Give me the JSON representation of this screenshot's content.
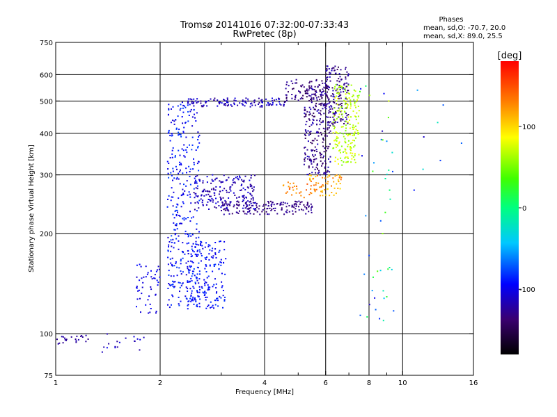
{
  "chart_data": {
    "type": "scatter",
    "title": "Tromsø 20141016 07:32:00-07:33:43",
    "subtitle": "RwPretec (8p)",
    "xlabel": "Frequency [MHz]",
    "ylabel": "Stationary phase Virtual Height [km]",
    "x_scale": "log",
    "y_scale": "log",
    "xlim": [
      1,
      16
    ],
    "ylim": [
      75,
      750
    ],
    "x_ticks": [
      1,
      2,
      4,
      6,
      8,
      10,
      16
    ],
    "x_minor_ticks": [
      3,
      5,
      7,
      9
    ],
    "y_ticks": [
      75,
      100,
      200,
      300,
      400,
      500,
      600,
      750
    ],
    "x_gridlines": [
      2,
      4,
      6,
      8,
      10
    ],
    "y_gridlines": [
      100,
      200,
      300,
      400,
      500,
      600
    ],
    "grid": true,
    "stats": {
      "heading": "Phases",
      "line1": "mean, sd,O: -70.7, 20.0",
      "line2": "mean, sd,X:  89.0, 25.5"
    },
    "colorbar": {
      "label": "[deg]",
      "range": [
        -180,
        180
      ],
      "ticks": [
        100,
        0,
        -100
      ]
    },
    "clusters": [
      {
        "f": [
          0.95,
          1.25
        ],
        "h": [
          93,
          99
        ],
        "phase": [
          -130,
          -115
        ],
        "count": 30
      },
      {
        "f": [
          1.35,
          1.8
        ],
        "h": [
          87,
          100
        ],
        "phase": [
          -125,
          -95
        ],
        "count": 18
      },
      {
        "f": [
          2.1,
          2.6
        ],
        "h": [
          120,
          500
        ],
        "phase": [
          -110,
          -75
        ],
        "count": 360
      },
      {
        "f": [
          2.4,
          3.1
        ],
        "h": [
          118,
          190
        ],
        "phase": [
          -105,
          -80
        ],
        "count": 170
      },
      {
        "f": [
          1.7,
          2.0
        ],
        "h": [
          115,
          165
        ],
        "phase": [
          -110,
          -90
        ],
        "count": 50
      },
      {
        "f": [
          2.5,
          3.8
        ],
        "h": [
          235,
          300
        ],
        "phase": [
          -130,
          -100
        ],
        "count": 200
      },
      {
        "f": [
          3.0,
          5.5
        ],
        "h": [
          228,
          250
        ],
        "phase": [
          -140,
          -120
        ],
        "count": 160
      },
      {
        "f": [
          2.4,
          4.6
        ],
        "h": [
          480,
          510
        ],
        "phase": [
          -130,
          -100
        ],
        "count": 120
      },
      {
        "f": [
          4.6,
          6.1
        ],
        "h": [
          500,
          580
        ],
        "phase": [
          -145,
          -120
        ],
        "count": 70
      },
      {
        "f": [
          5.2,
          6.2
        ],
        "h": [
          300,
          560
        ],
        "phase": [
          -150,
          -110
        ],
        "count": 260
      },
      {
        "f": [
          6.0,
          7.0
        ],
        "h": [
          420,
          640
        ],
        "phase": [
          -145,
          -110
        ],
        "count": 150
      },
      {
        "f": [
          6.3,
          7.5
        ],
        "h": [
          320,
          560
        ],
        "phase": [
          50,
          90
        ],
        "count": 200
      },
      {
        "f": [
          5.4,
          6.7
        ],
        "h": [
          260,
          300
        ],
        "phase": [
          95,
          140
        ],
        "count": 60
      },
      {
        "f": [
          4.5,
          5.6
        ],
        "h": [
          255,
          285
        ],
        "phase": [
          110,
          150
        ],
        "count": 30
      },
      {
        "f": [
          7.5,
          9.5
        ],
        "h": [
          100,
          600
        ],
        "phase": [
          -120,
          80
        ],
        "count": 45
      },
      {
        "f": [
          10.0,
          15.0
        ],
        "h": [
          250,
          560
        ],
        "phase": [
          -120,
          100
        ],
        "count": 8
      }
    ]
  }
}
